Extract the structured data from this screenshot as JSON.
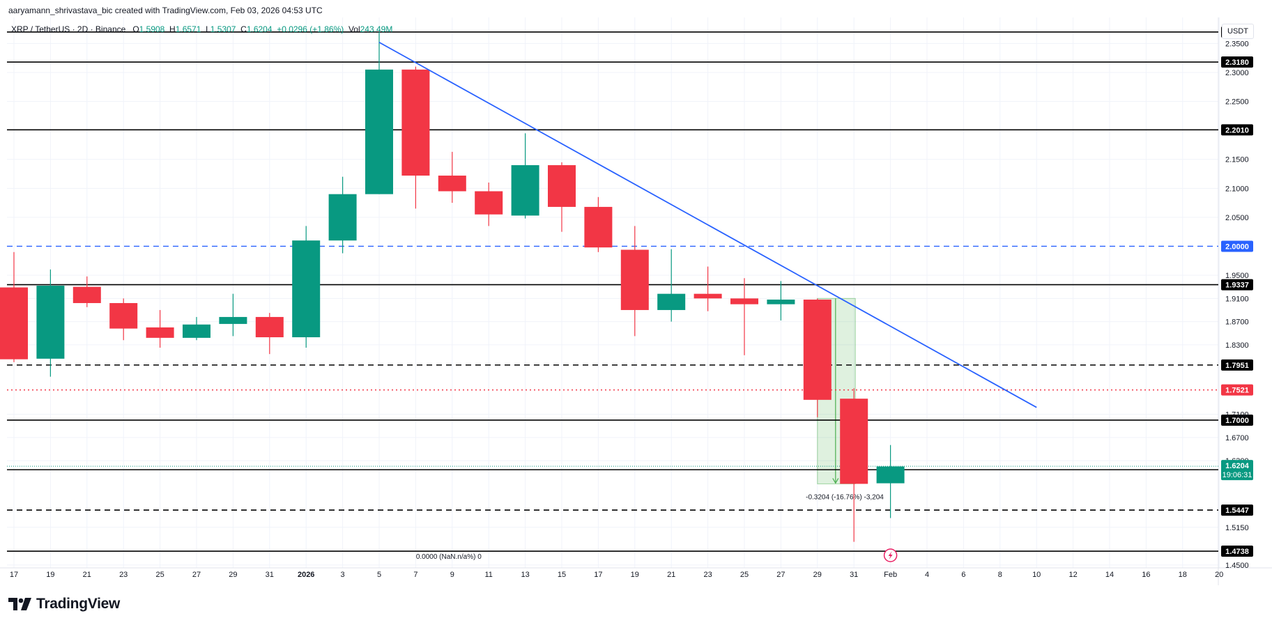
{
  "credit": "aaryamann_shrivastava_bic created with TradingView.com, Feb 03, 2026 04:53 UTC",
  "legend": {
    "symbol": "XRP / TetherUS · 2D · Binance",
    "open_label": "O",
    "open": "1.5908",
    "high_label": "H",
    "high": "1.6571",
    "low_label": "L",
    "low": "1.5307",
    "close_label": "C",
    "close": "1.6204",
    "change": "+0.0296 (+1.86%)",
    "vol_label": "Vol",
    "vol": "243.49M"
  },
  "currency": "USDT",
  "brand": "TradingView",
  "colors": {
    "up": "#089981",
    "down": "#f23645",
    "trendline": "#2962ff",
    "dotted_red": "#f23645",
    "current_tag": "#089981"
  },
  "chart_data": {
    "type": "candlestick",
    "ylim": [
      1.445,
      2.395
    ],
    "y_ticks": [
      "2.3500",
      "2.3000",
      "2.2500",
      "2.1500",
      "2.1000",
      "2.0500",
      "1.9500",
      "1.9100",
      "1.8700",
      "1.8300",
      "1.7100",
      "1.6700",
      "1.6300",
      "1.5150",
      "1.4500"
    ],
    "x_ticks": [
      {
        "i": 0,
        "label": "17"
      },
      {
        "i": 1,
        "label": "19"
      },
      {
        "i": 2,
        "label": "21"
      },
      {
        "i": 3,
        "label": "23"
      },
      {
        "i": 4,
        "label": "25"
      },
      {
        "i": 5,
        "label": "27"
      },
      {
        "i": 6,
        "label": "29"
      },
      {
        "i": 7,
        "label": "31"
      },
      {
        "i": 8,
        "label": "2026"
      },
      {
        "i": 9,
        "label": "3"
      },
      {
        "i": 10,
        "label": "5"
      },
      {
        "i": 11,
        "label": "7"
      },
      {
        "i": 12,
        "label": "9"
      },
      {
        "i": 13,
        "label": "11"
      },
      {
        "i": 14,
        "label": "13"
      },
      {
        "i": 15,
        "label": "15"
      },
      {
        "i": 16,
        "label": "17"
      },
      {
        "i": 17,
        "label": "19"
      },
      {
        "i": 18,
        "label": "21"
      },
      {
        "i": 19,
        "label": "23"
      },
      {
        "i": 20,
        "label": "25"
      },
      {
        "i": 21,
        "label": "27"
      },
      {
        "i": 22,
        "label": "29"
      },
      {
        "i": 23,
        "label": "31"
      },
      {
        "i": 24,
        "label": "Feb"
      },
      {
        "i": 25,
        "label": "4"
      },
      {
        "i": 26,
        "label": "6"
      },
      {
        "i": 27,
        "label": "8"
      },
      {
        "i": 28,
        "label": "10"
      },
      {
        "i": 29,
        "label": "12"
      },
      {
        "i": 30,
        "label": "14"
      },
      {
        "i": 31,
        "label": "16"
      },
      {
        "i": 32,
        "label": "18"
      },
      {
        "i": 33,
        "label": "20"
      }
    ],
    "candles": [
      {
        "i": 0,
        "o": 1.929,
        "h": 1.99,
        "l": 1.8,
        "c": 1.805
      },
      {
        "i": 1,
        "o": 1.806,
        "h": 1.96,
        "l": 1.775,
        "c": 1.932
      },
      {
        "i": 2,
        "o": 1.93,
        "h": 1.948,
        "l": 1.895,
        "c": 1.902
      },
      {
        "i": 3,
        "o": 1.902,
        "h": 1.91,
        "l": 1.838,
        "c": 1.858
      },
      {
        "i": 4,
        "o": 1.86,
        "h": 1.89,
        "l": 1.825,
        "c": 1.842
      },
      {
        "i": 5,
        "o": 1.842,
        "h": 1.878,
        "l": 1.838,
        "c": 1.865
      },
      {
        "i": 6,
        "o": 1.866,
        "h": 1.918,
        "l": 1.845,
        "c": 1.878
      },
      {
        "i": 7,
        "o": 1.878,
        "h": 1.885,
        "l": 1.814,
        "c": 1.843
      },
      {
        "i": 8,
        "o": 1.843,
        "h": 2.035,
        "l": 1.825,
        "c": 2.01
      },
      {
        "i": 9,
        "o": 2.01,
        "h": 2.12,
        "l": 1.988,
        "c": 2.09
      },
      {
        "i": 10,
        "o": 2.09,
        "h": 2.37,
        "l": 2.09,
        "c": 2.305
      },
      {
        "i": 11,
        "o": 2.305,
        "h": 2.31,
        "l": 2.065,
        "c": 2.122
      },
      {
        "i": 12,
        "o": 2.122,
        "h": 2.163,
        "l": 2.075,
        "c": 2.095
      },
      {
        "i": 13,
        "o": 2.095,
        "h": 2.11,
        "l": 2.035,
        "c": 2.055
      },
      {
        "i": 14,
        "o": 2.053,
        "h": 2.195,
        "l": 2.048,
        "c": 2.14
      },
      {
        "i": 15,
        "o": 2.14,
        "h": 2.145,
        "l": 2.025,
        "c": 2.068
      },
      {
        "i": 16,
        "o": 2.068,
        "h": 2.085,
        "l": 1.99,
        "c": 1.998
      },
      {
        "i": 17,
        "o": 1.994,
        "h": 2.035,
        "l": 1.845,
        "c": 1.89
      },
      {
        "i": 18,
        "o": 1.89,
        "h": 1.995,
        "l": 1.87,
        "c": 1.918
      },
      {
        "i": 19,
        "o": 1.918,
        "h": 1.965,
        "l": 1.888,
        "c": 1.91
      },
      {
        "i": 20,
        "o": 1.91,
        "h": 1.945,
        "l": 1.812,
        "c": 1.9
      },
      {
        "i": 21,
        "o": 1.9,
        "h": 1.94,
        "l": 1.872,
        "c": 1.908
      },
      {
        "i": 22,
        "o": 1.908,
        "h": 1.91,
        "l": 1.705,
        "c": 1.735
      },
      {
        "i": 23,
        "o": 1.737,
        "h": 1.755,
        "l": 1.49,
        "c": 1.59
      },
      {
        "i": 24,
        "o": 1.591,
        "h": 1.657,
        "l": 1.531,
        "c": 1.62
      }
    ],
    "horizontal_levels": [
      {
        "price": 2.3698,
        "label": "2.3698",
        "style": "solid"
      },
      {
        "price": 2.318,
        "label": "2.3180",
        "style": "solid"
      },
      {
        "price": 2.201,
        "label": "2.2010",
        "style": "solid"
      },
      {
        "price": 2.0,
        "label": "2.0000",
        "style": "dashed-blue"
      },
      {
        "price": 1.9337,
        "label": "1.9337",
        "style": "solid"
      },
      {
        "price": 1.7951,
        "label": "1.7951",
        "style": "dashed"
      },
      {
        "price": 1.7521,
        "label": "1.7521",
        "style": "dotted-red"
      },
      {
        "price": 1.7,
        "label": "1.7000",
        "style": "solid"
      },
      {
        "price": 1.6144,
        "label": "1.6144",
        "style": "solid"
      },
      {
        "price": 1.5447,
        "label": "1.5447",
        "style": "dashed"
      },
      {
        "price": 1.4738,
        "label": "1.4738",
        "style": "solid"
      }
    ],
    "current_price": {
      "price": 1.6204,
      "label": "1.6204",
      "countdown": "19:06:31"
    },
    "trendline": {
      "i1": 10.0,
      "p1": 2.352,
      "i2": 28.0,
      "p2": 1.722
    },
    "measure": {
      "i1": 22.0,
      "i2": 23.0,
      "p_top": 1.91,
      "p_bot": 1.59,
      "label": "-0.3204 (-16.76%) -3,204"
    },
    "annotation_zero": "0.0000 (NaN.n/a%) 0"
  }
}
